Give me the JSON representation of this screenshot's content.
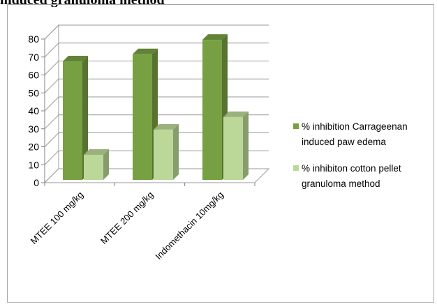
{
  "page_heading": "induced granuloma method",
  "chart_data": {
    "type": "bar",
    "categories": [
      "MTEE 100 mg/kg",
      "MTEE 200 mg/kg",
      "Indomethacin 10mg/kg"
    ],
    "series": [
      {
        "name": "% inhibition Carrageenan induced paw edema",
        "values": [
          66,
          70,
          78
        ],
        "color": "#77a043"
      },
      {
        "name": "% inhibiton cotton pellet granuloma method",
        "values": [
          14,
          28,
          35
        ],
        "color": "#bcd898"
      }
    ],
    "y_ticks": [
      "0",
      "10",
      "20",
      "30",
      "40",
      "50",
      "60",
      "70",
      "80"
    ],
    "ylim": [
      0,
      80
    ],
    "grid": true,
    "legend_position": "right",
    "legend_lines": [
      [
        "% inhibition Carrageenan",
        "induced paw edema"
      ],
      [
        "% inhibiton cotton pellet",
        "granuloma method"
      ]
    ]
  }
}
